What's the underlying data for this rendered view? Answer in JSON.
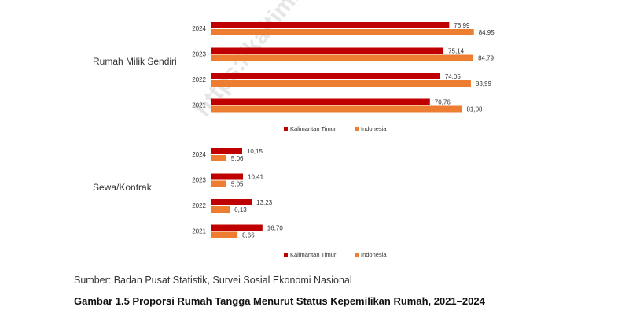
{
  "watermark": "https://kaltim.bps.go.id",
  "colors": {
    "kaltim": "#c00000",
    "indonesia": "#ed7d31",
    "label": "#333333"
  },
  "chart_data": [
    {
      "type": "bar",
      "orientation": "horizontal",
      "panel_label": "Rumah Milik Sendiri",
      "categories": [
        "2024",
        "2023",
        "2022",
        "2021"
      ],
      "series": [
        {
          "name": "Kalimantan Timur",
          "values": [
            76.99,
            75.14,
            74.05,
            70.76
          ],
          "labels": [
            "76,99",
            "75,14",
            "74,05",
            "70,76"
          ]
        },
        {
          "name": "Indonesia",
          "values": [
            84.95,
            84.79,
            83.99,
            81.08
          ],
          "labels": [
            "84,95",
            "84,79",
            "83,99",
            "81,08"
          ]
        }
      ],
      "legend": "bottom",
      "grid": false
    },
    {
      "type": "bar",
      "orientation": "horizontal",
      "panel_label": "Sewa/Kontrak",
      "categories": [
        "2024",
        "2023",
        "2022",
        "2021"
      ],
      "series": [
        {
          "name": "Kalimantan Timur",
          "values": [
            10.15,
            10.41,
            13.23,
            16.7
          ],
          "labels": [
            "10,15",
            "10,41",
            "13,23",
            "16,70"
          ]
        },
        {
          "name": "Indonesia",
          "values": [
            5.06,
            5.05,
            6.13,
            8.66
          ],
          "labels": [
            "5,06",
            "5,05",
            "6,13",
            "8,66"
          ]
        }
      ],
      "legend": "bottom",
      "grid": false
    }
  ],
  "source": "Sumber: Badan Pusat Statistik, Survei Sosial Ekonomi Nasional",
  "caption": "Gambar 1.5  Proporsi Rumah Tangga Menurut Status Kepemilikan Rumah, 2021–2024"
}
